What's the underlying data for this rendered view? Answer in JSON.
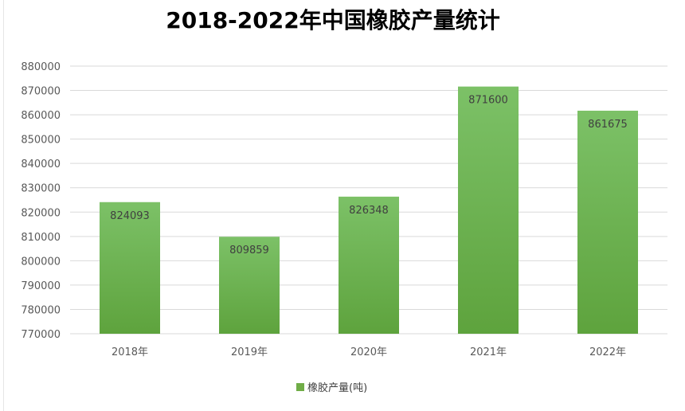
{
  "chart_data": {
    "type": "bar",
    "title": "2018-2022年中国橡胶产量统计",
    "categories": [
      "2018年",
      "2019年",
      "2020年",
      "2021年",
      "2022年"
    ],
    "series": [
      {
        "name": "橡胶产量(吨)",
        "values": [
          824093,
          809859,
          826348,
          871600,
          861675
        ]
      }
    ],
    "ylim": [
      770000,
      880000
    ],
    "ytick_step": 10000,
    "yticks": [
      "770000",
      "780000",
      "790000",
      "800000",
      "810000",
      "820000",
      "830000",
      "840000",
      "850000",
      "860000",
      "870000",
      "880000"
    ],
    "grid": true,
    "legend": "bottom",
    "data_labels": [
      "824093",
      "809859",
      "826348",
      "871600",
      "861675"
    ],
    "colors": {
      "bar_top": "#7cc167",
      "bar_bottom": "#5ea33d",
      "legend_swatch": "#70ad47",
      "grid": "#d9d9d9"
    }
  }
}
